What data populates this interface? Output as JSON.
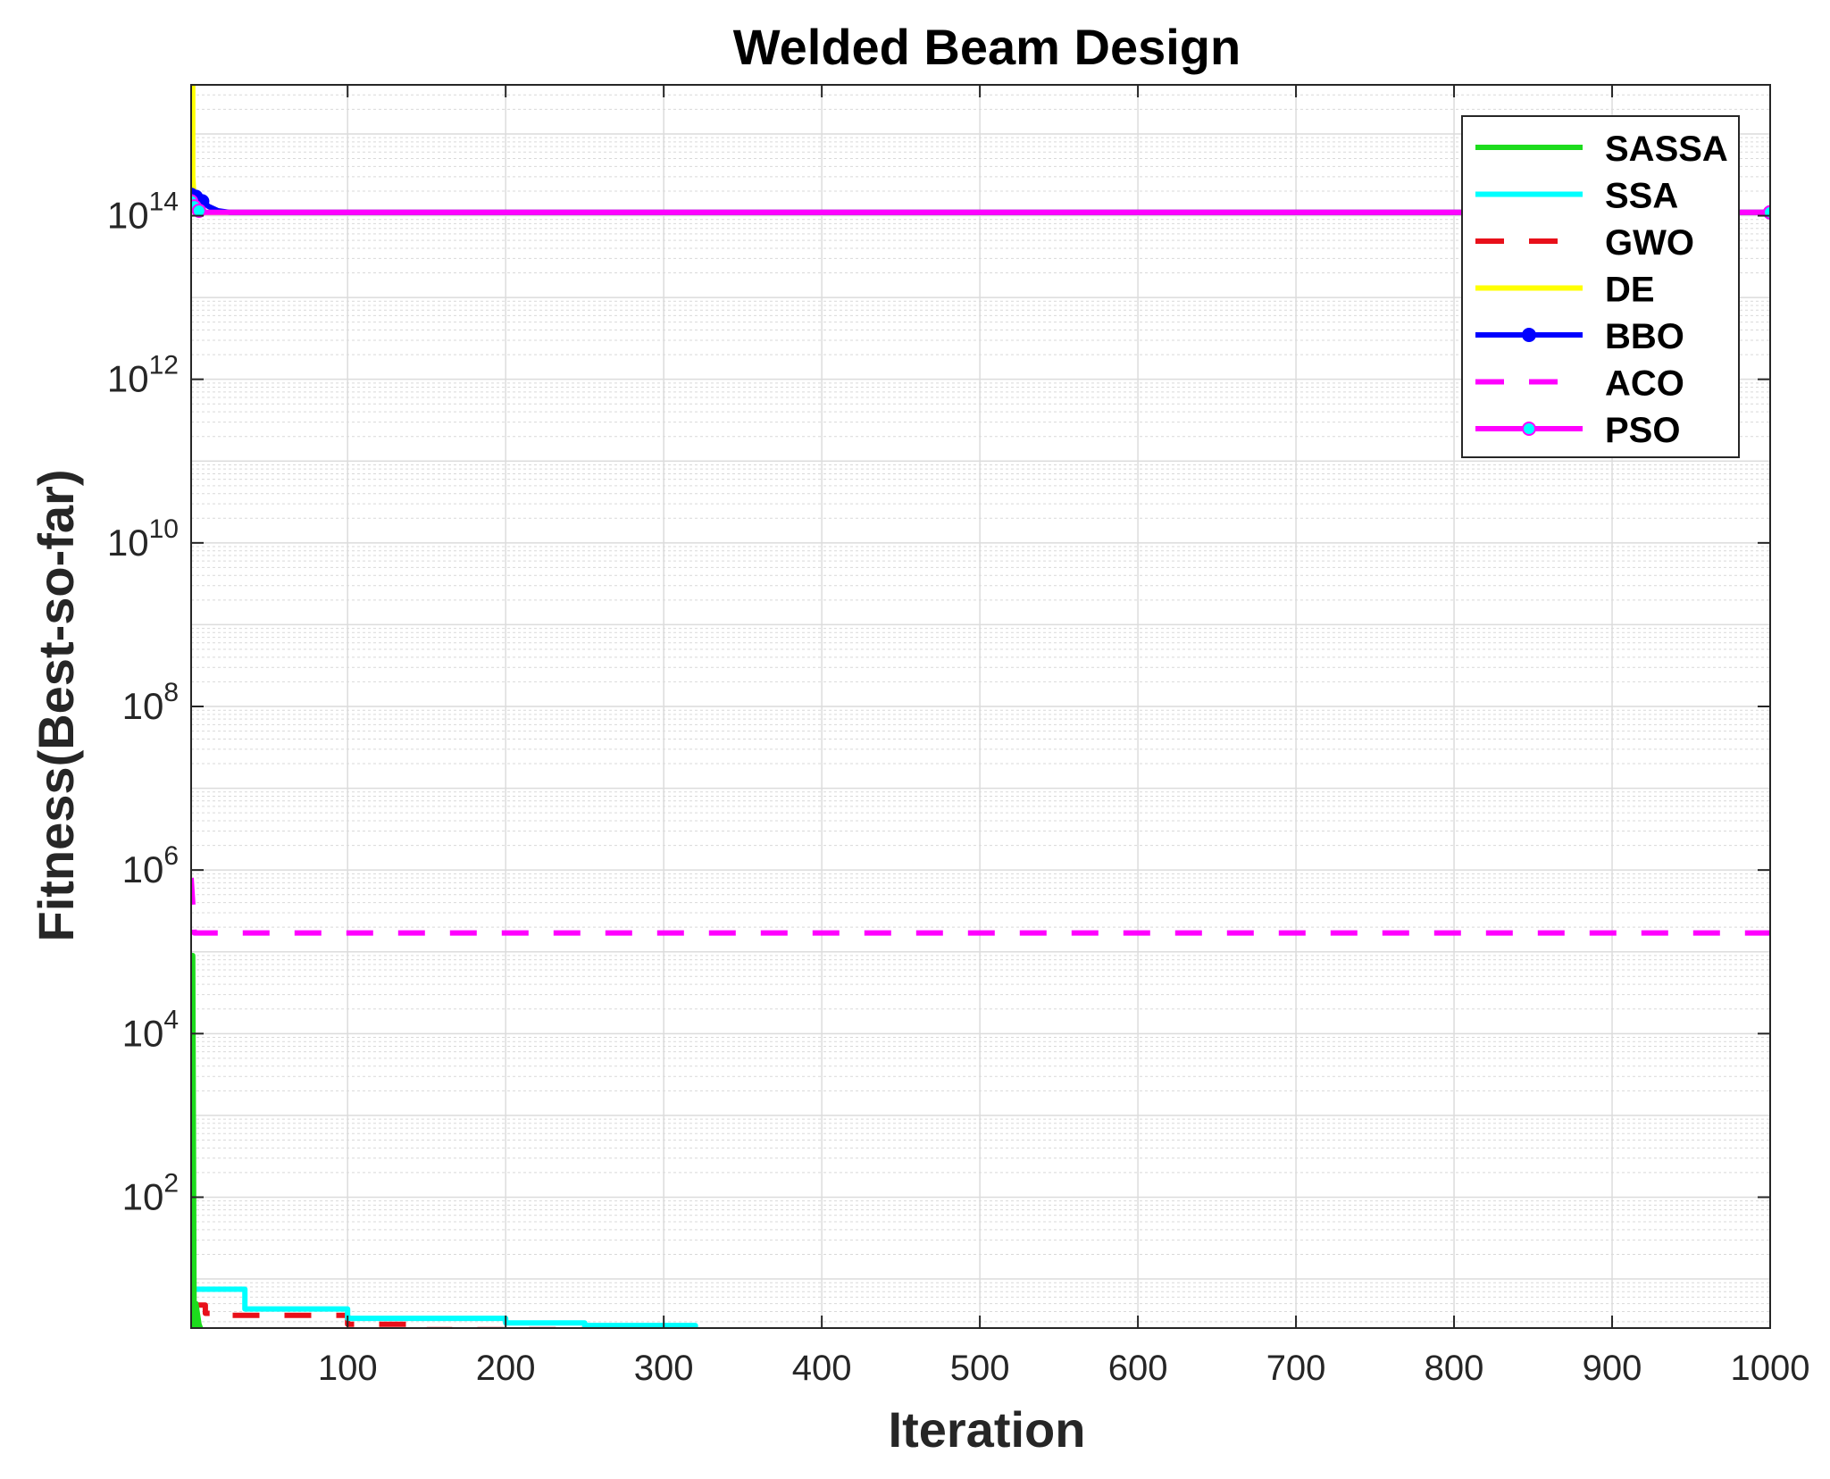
{
  "chart_data": {
    "type": "line",
    "title": "Welded Beam Design",
    "xlabel": "Iteration",
    "ylabel": "Fitness(Best-so-far)",
    "xlim": [
      1,
      1000
    ],
    "ylim_log10": [
      0.4,
      15.6
    ],
    "yscale": "log",
    "grid": true,
    "minor_grid": true,
    "legend_position": "top-right",
    "x_ticks": [
      {
        "value": 100,
        "label": "100"
      },
      {
        "value": 200,
        "label": "200"
      },
      {
        "value": 300,
        "label": "300"
      },
      {
        "value": 400,
        "label": "400"
      },
      {
        "value": 500,
        "label": "500"
      },
      {
        "value": 600,
        "label": "600"
      },
      {
        "value": 700,
        "label": "700"
      },
      {
        "value": 800,
        "label": "800"
      },
      {
        "value": 900,
        "label": "900"
      },
      {
        "value": 1000,
        "label": "1000"
      }
    ],
    "y_ticks": [
      {
        "exp": 2,
        "base": "10",
        "sup": "2"
      },
      {
        "exp": 4,
        "base": "10",
        "sup": "4"
      },
      {
        "exp": 6,
        "base": "10",
        "sup": "6"
      },
      {
        "exp": 8,
        "base": "10",
        "sup": "8"
      },
      {
        "exp": 10,
        "base": "10",
        "sup": "10"
      },
      {
        "exp": 12,
        "base": "10",
        "sup": "12"
      },
      {
        "exp": 14,
        "base": "10",
        "sup": "14"
      }
    ],
    "series": [
      {
        "name": "SASSA",
        "color": "#1ddc1d",
        "style": "solid",
        "marker": "none",
        "points": [
          [
            1,
            90000
          ],
          [
            2,
            90000
          ],
          [
            3,
            1.0
          ],
          [
            4,
            5.0
          ],
          [
            6,
            2.8
          ],
          [
            8,
            2.2
          ],
          [
            12,
            1.75
          ],
          [
            50,
            1.7
          ],
          [
            450,
            1.7
          ],
          [
            1000,
            1.7
          ]
        ]
      },
      {
        "name": "SSA",
        "color": "#00ffff",
        "style": "solid",
        "marker": "none",
        "points": [
          [
            1,
            7.0
          ],
          [
            4,
            7.5
          ],
          [
            35,
            7.5
          ],
          [
            35,
            4.3
          ],
          [
            100,
            4.3
          ],
          [
            100,
            3.3
          ],
          [
            200,
            3.3
          ],
          [
            200,
            2.9
          ],
          [
            250,
            2.9
          ],
          [
            250,
            2.7
          ],
          [
            320,
            2.7
          ],
          [
            320,
            1.9
          ],
          [
            350,
            1.9
          ],
          [
            350,
            1.8
          ],
          [
            450,
            1.8
          ],
          [
            450,
            1.7
          ],
          [
            1000,
            1.7
          ]
        ]
      },
      {
        "name": "GWO",
        "color": "#e8101a",
        "style": "dashed",
        "marker": "none",
        "points": [
          [
            1,
            4.8
          ],
          [
            10,
            4.8
          ],
          [
            10,
            3.8
          ],
          [
            20,
            3.8
          ],
          [
            20,
            3.6
          ],
          [
            100,
            3.6
          ],
          [
            100,
            2.8
          ],
          [
            150,
            2.8
          ],
          [
            150,
            2.4
          ],
          [
            250,
            2.4
          ],
          [
            250,
            2.3
          ],
          [
            350,
            2.3
          ],
          [
            350,
            2.1
          ],
          [
            1000,
            2.1
          ]
        ]
      },
      {
        "name": "DE",
        "color": "#ffff00",
        "style": "solid",
        "marker": "none",
        "points": [
          [
            1,
            4500000000000000.0
          ],
          [
            2,
            4500000000000000.0
          ],
          [
            2,
            300000000000000.0
          ],
          [
            3,
            150000000000000.0
          ],
          [
            8,
            110000000000000.0
          ],
          [
            1000,
            110000000000000.0
          ]
        ]
      },
      {
        "name": "BBO",
        "color": "#0000ff",
        "style": "solid",
        "marker": "star",
        "points": [
          [
            1,
            180000000000000.0
          ],
          [
            4,
            170000000000000.0
          ],
          [
            8,
            150000000000000.0
          ],
          [
            12,
            130000000000000.0
          ],
          [
            18,
            115000000000000.0
          ],
          [
            25,
            110000000000000.0
          ],
          [
            1000,
            110000000000000.0
          ]
        ]
      },
      {
        "name": "ACO",
        "color": "#ff00ff",
        "style": "dashed",
        "marker": "none",
        "points": [
          [
            1,
            800000
          ],
          [
            2,
            400000
          ],
          [
            3,
            170000
          ],
          [
            1000,
            170000
          ]
        ]
      },
      {
        "name": "PSO",
        "color": "#ff00ff",
        "marker_color": "#00ffff",
        "style": "solid",
        "marker": "circle",
        "points": [
          [
            1,
            150000000000000.0
          ],
          [
            3,
            130000000000000.0
          ],
          [
            6,
            115000000000000.0
          ],
          [
            10,
            110000000000000.0
          ],
          [
            1000,
            110000000000000.0
          ]
        ]
      }
    ]
  }
}
